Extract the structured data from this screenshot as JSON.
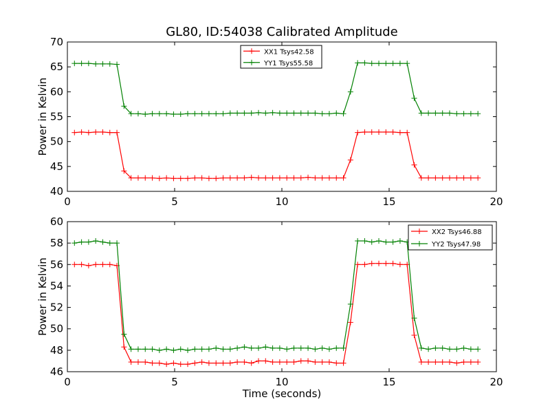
{
  "figure": {
    "title": "GL80, ID:54038 Calibrated Amplitude"
  },
  "chart_data": [
    {
      "type": "line",
      "title": "GL80, ID:54038 Calibrated Amplitude",
      "xlabel": "",
      "ylabel": "Power in Kelvin",
      "xlim": [
        0,
        20
      ],
      "ylim": [
        40,
        70
      ],
      "xticks": [
        "0",
        "5",
        "10",
        "15",
        "20"
      ],
      "yticks": [
        "40",
        "45",
        "50",
        "55",
        "60",
        "65",
        "70"
      ],
      "grid": false,
      "legend_position": "top-center",
      "series": [
        {
          "name": "XX1 Tsys42.58",
          "color": "#ff0000",
          "x": [
            0.33,
            0.66,
            0.99,
            1.32,
            1.65,
            1.98,
            2.31,
            2.64,
            2.97,
            3.3,
            3.63,
            3.96,
            4.29,
            4.62,
            4.95,
            5.28,
            5.61,
            5.94,
            6.27,
            6.6,
            6.93,
            7.26,
            7.59,
            7.92,
            8.25,
            8.58,
            8.91,
            9.24,
            9.57,
            9.9,
            10.23,
            10.56,
            10.89,
            11.22,
            11.55,
            11.88,
            12.21,
            12.54,
            12.87,
            13.2,
            13.53,
            13.86,
            14.19,
            14.52,
            14.85,
            15.18,
            15.51,
            15.84,
            16.17,
            16.5,
            16.83,
            17.16,
            17.49,
            17.82,
            18.15,
            18.48,
            18.81,
            19.14
          ],
          "y": [
            51.8,
            51.9,
            51.8,
            51.9,
            51.9,
            51.8,
            51.8,
            44.1,
            42.7,
            42.7,
            42.7,
            42.7,
            42.6,
            42.7,
            42.6,
            42.6,
            42.6,
            42.7,
            42.7,
            42.6,
            42.6,
            42.7,
            42.7,
            42.7,
            42.7,
            42.8,
            42.7,
            42.7,
            42.7,
            42.7,
            42.7,
            42.7,
            42.7,
            42.8,
            42.7,
            42.7,
            42.7,
            42.7,
            42.7,
            46.3,
            51.8,
            51.9,
            51.9,
            51.9,
            51.9,
            51.9,
            51.8,
            51.8,
            45.3,
            42.7,
            42.7,
            42.7,
            42.7,
            42.7,
            42.7,
            42.7,
            42.7,
            42.7
          ]
        },
        {
          "name": "YY1 Tsys55.58",
          "color": "#008000",
          "x": [
            0.33,
            0.66,
            0.99,
            1.32,
            1.65,
            1.98,
            2.31,
            2.64,
            2.97,
            3.3,
            3.63,
            3.96,
            4.29,
            4.62,
            4.95,
            5.28,
            5.61,
            5.94,
            6.27,
            6.6,
            6.93,
            7.26,
            7.59,
            7.92,
            8.25,
            8.58,
            8.91,
            9.24,
            9.57,
            9.9,
            10.23,
            10.56,
            10.89,
            11.22,
            11.55,
            11.88,
            12.21,
            12.54,
            12.87,
            13.2,
            13.53,
            13.86,
            14.19,
            14.52,
            14.85,
            15.18,
            15.51,
            15.84,
            16.17,
            16.5,
            16.83,
            17.16,
            17.49,
            17.82,
            18.15,
            18.48,
            18.81,
            19.14
          ],
          "y": [
            65.7,
            65.7,
            65.7,
            65.6,
            65.6,
            65.6,
            65.5,
            57.1,
            55.6,
            55.6,
            55.5,
            55.6,
            55.6,
            55.6,
            55.5,
            55.5,
            55.6,
            55.6,
            55.6,
            55.6,
            55.6,
            55.6,
            55.7,
            55.7,
            55.7,
            55.7,
            55.8,
            55.7,
            55.8,
            55.7,
            55.7,
            55.7,
            55.7,
            55.7,
            55.7,
            55.6,
            55.6,
            55.7,
            55.6,
            60.0,
            65.8,
            65.8,
            65.7,
            65.7,
            65.7,
            65.7,
            65.7,
            65.7,
            58.7,
            55.7,
            55.7,
            55.7,
            55.7,
            55.7,
            55.6,
            55.6,
            55.6,
            55.6
          ]
        }
      ]
    },
    {
      "type": "line",
      "title": "",
      "xlabel": "Time (seconds)",
      "ylabel": "Power in Kelvin",
      "xlim": [
        0,
        20
      ],
      "ylim": [
        46,
        60
      ],
      "xticks": [
        "0",
        "5",
        "10",
        "15",
        "20"
      ],
      "yticks": [
        "46",
        "48",
        "50",
        "52",
        "54",
        "56",
        "58",
        "60"
      ],
      "grid": false,
      "legend_position": "top-right",
      "series": [
        {
          "name": "XX2 Tsys46.88",
          "color": "#ff0000",
          "x": [
            0.33,
            0.66,
            0.99,
            1.32,
            1.65,
            1.98,
            2.31,
            2.64,
            2.97,
            3.3,
            3.63,
            3.96,
            4.29,
            4.62,
            4.95,
            5.28,
            5.61,
            5.94,
            6.27,
            6.6,
            6.93,
            7.26,
            7.59,
            7.92,
            8.25,
            8.58,
            8.91,
            9.24,
            9.57,
            9.9,
            10.23,
            10.56,
            10.89,
            11.22,
            11.55,
            11.88,
            12.21,
            12.54,
            12.87,
            13.2,
            13.53,
            13.86,
            14.19,
            14.52,
            14.85,
            15.18,
            15.51,
            15.84,
            16.17,
            16.5,
            16.83,
            17.16,
            17.49,
            17.82,
            18.15,
            18.48,
            18.81,
            19.14
          ],
          "y": [
            56.0,
            56.0,
            55.9,
            56.0,
            56.0,
            56.0,
            55.9,
            48.3,
            46.9,
            46.9,
            46.9,
            46.8,
            46.8,
            46.7,
            46.8,
            46.7,
            46.7,
            46.8,
            46.9,
            46.8,
            46.8,
            46.8,
            46.8,
            46.9,
            46.9,
            46.8,
            47.0,
            47.0,
            46.9,
            46.9,
            46.9,
            46.9,
            47.0,
            47.0,
            46.9,
            46.9,
            46.9,
            46.8,
            46.8,
            50.6,
            56.0,
            56.0,
            56.1,
            56.1,
            56.1,
            56.1,
            56.0,
            56.0,
            49.4,
            46.9,
            46.9,
            46.9,
            46.9,
            46.9,
            46.8,
            46.9,
            46.9,
            46.9
          ]
        },
        {
          "name": "YY2 Tsys47.98",
          "color": "#008000",
          "x": [
            0.33,
            0.66,
            0.99,
            1.32,
            1.65,
            1.98,
            2.31,
            2.64,
            2.97,
            3.3,
            3.63,
            3.96,
            4.29,
            4.62,
            4.95,
            5.28,
            5.61,
            5.94,
            6.27,
            6.6,
            6.93,
            7.26,
            7.59,
            7.92,
            8.25,
            8.58,
            8.91,
            9.24,
            9.57,
            9.9,
            10.23,
            10.56,
            10.89,
            11.22,
            11.55,
            11.88,
            12.21,
            12.54,
            12.87,
            13.2,
            13.53,
            13.86,
            14.19,
            14.52,
            14.85,
            15.18,
            15.51,
            15.84,
            16.17,
            16.5,
            16.83,
            17.16,
            17.49,
            17.82,
            18.15,
            18.48,
            18.81,
            19.14
          ],
          "y": [
            58.0,
            58.1,
            58.1,
            58.2,
            58.1,
            58.0,
            58.0,
            49.5,
            48.1,
            48.1,
            48.1,
            48.1,
            48.0,
            48.1,
            48.0,
            48.1,
            48.0,
            48.1,
            48.1,
            48.1,
            48.2,
            48.1,
            48.1,
            48.2,
            48.3,
            48.2,
            48.2,
            48.3,
            48.2,
            48.2,
            48.1,
            48.2,
            48.2,
            48.2,
            48.1,
            48.2,
            48.1,
            48.2,
            48.2,
            52.3,
            58.2,
            58.2,
            58.1,
            58.2,
            58.1,
            58.1,
            58.2,
            58.1,
            51.0,
            48.2,
            48.1,
            48.2,
            48.2,
            48.1,
            48.1,
            48.2,
            48.1,
            48.1
          ]
        }
      ]
    }
  ]
}
